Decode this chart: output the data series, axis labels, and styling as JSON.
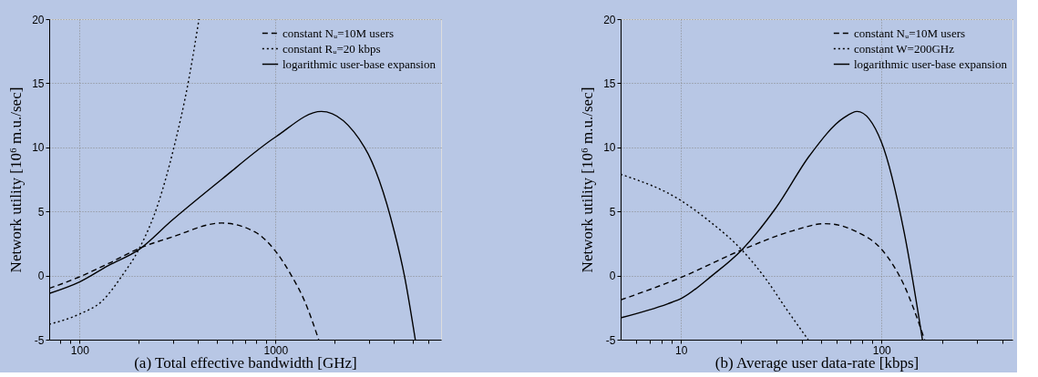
{
  "chart_data": [
    {
      "type": "line",
      "xlabel": "(a) Total effective bandwidth [GHz]",
      "ylabel": "Network utility [10⁶ m.u./sec]",
      "log": "x",
      "grid": true,
      "legend": "top right",
      "xlim": [
        70,
        7000
      ],
      "ylim": [
        -5,
        20
      ],
      "xticks": [
        {
          "value": 80,
          "label": null
        },
        {
          "value": 90,
          "label": null
        },
        100,
        {
          "value": 200,
          "label": null
        },
        {
          "value": 300,
          "label": null
        },
        {
          "value": 400,
          "label": null
        },
        {
          "value": 500,
          "label": null
        },
        {
          "value": 600,
          "label": null
        },
        {
          "value": 700,
          "label": null
        },
        {
          "value": 800,
          "label": null
        },
        {
          "value": 900,
          "label": null
        },
        1000,
        {
          "value": 2000,
          "label": null
        },
        {
          "value": 3000,
          "label": null
        },
        {
          "value": 4000,
          "label": null
        },
        {
          "value": 5000,
          "label": null
        },
        {
          "value": 6000,
          "label": null
        }
      ],
      "yticks": [
        -5,
        0,
        5,
        10,
        15,
        20
      ],
      "series": [
        {
          "name": "constant Nᵤ=10M users",
          "color": "#000000",
          "line_style": "dashed",
          "x": [
            70,
            100,
            141,
            200,
            296,
            531,
            785,
            1000,
            1206,
            1409,
            1661
          ],
          "values": [
            -1.0,
            -0.1,
            0.95,
            2.1,
            3.0,
            4.1,
            3.4,
            1.9,
            0,
            -2.0,
            -5
          ]
        },
        {
          "name": "constant Rᵤ=20 kbps",
          "color": "#000000",
          "line_style": "dotted",
          "x": [
            70,
            100,
            130,
            165,
            200,
            253,
            302,
            360,
            407
          ],
          "values": [
            -3.8,
            -3.0,
            -2.0,
            0,
            2.0,
            5.7,
            9.9,
            15.2,
            20
          ]
        },
        {
          "name": "logarithmic user-base expansion",
          "color": "#000000",
          "line_style": "solid",
          "x": [
            70,
            100,
            141,
            200,
            296,
            531,
            1000,
            1714,
            2847,
            4045,
            4548,
            5171
          ],
          "values": [
            -1.4,
            -0.5,
            0.8,
            2.0,
            4.3,
            7.5,
            10.8,
            12.8,
            10.0,
            3.4,
            0,
            -5
          ]
        }
      ]
    },
    {
      "type": "line",
      "xlabel": "(b) Average user data-rate [kbps]",
      "ylabel": "Network utility [10⁶ m.u./sec]",
      "log": "x",
      "grid": true,
      "legend": "top right",
      "xlim": [
        5,
        450
      ],
      "ylim": [
        -5,
        20
      ],
      "xticks": [
        {
          "value": 6,
          "label": null
        },
        {
          "value": 7,
          "label": null
        },
        {
          "value": 8,
          "label": null
        },
        {
          "value": 9,
          "label": null
        },
        10,
        {
          "value": 20,
          "label": null
        },
        {
          "value": 30,
          "label": null
        },
        {
          "value": 40,
          "label": null
        },
        {
          "value": 50,
          "label": null
        },
        {
          "value": 60,
          "label": null
        },
        {
          "value": 70,
          "label": null
        },
        {
          "value": 80,
          "label": null
        },
        {
          "value": 90,
          "label": null
        },
        100,
        {
          "value": 200,
          "label": null
        },
        {
          "value": 300,
          "label": null
        },
        {
          "value": 400,
          "label": null
        }
      ],
      "yticks": [
        -5,
        0,
        5,
        10,
        15,
        20
      ],
      "series": [
        {
          "name": "constant Nᵤ=10M users",
          "color": "#000000",
          "line_style": "dashed",
          "x": [
            5,
            10,
            20.1,
            36.2,
            52.3,
            75.6,
            100,
            130,
            164
          ],
          "values": [
            -1.9,
            -0.15,
            2.0,
            3.5,
            4.05,
            3.4,
            2.05,
            -0.8,
            -5
          ]
        },
        {
          "name": "constant W=200GHz",
          "color": "#000000",
          "line_style": "dotted",
          "x": [
            5,
            10,
            13.7,
            20.1,
            26.6,
            33.5,
            43.1
          ],
          "values": [
            7.9,
            5.85,
            4.3,
            2.0,
            -0.3,
            -2.6,
            -5
          ]
        },
        {
          "name": "logarithmic user-base expansion",
          "color": "#000000",
          "line_style": "solid",
          "x": [
            5,
            8.6,
            10,
            14.3,
            20.1,
            29.8,
            44,
            64.8,
            75.6,
            100,
            130,
            160
          ],
          "values": [
            -3.3,
            -2.2,
            -1.8,
            0,
            2.0,
            5.3,
            9.4,
            12.3,
            12.8,
            10.4,
            3.3,
            -5
          ]
        }
      ]
    }
  ]
}
